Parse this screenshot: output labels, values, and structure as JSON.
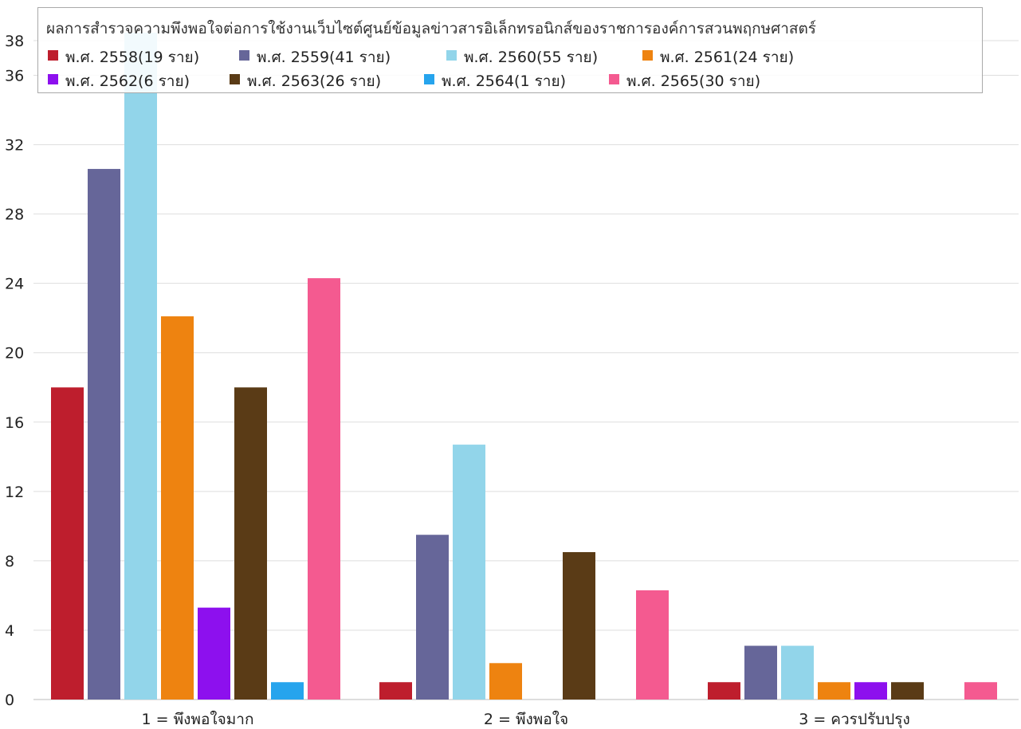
{
  "chart_data": {
    "type": "bar",
    "title": "ผลการสำรวจความพึงพอใจต่อการใช้งานเว็บไซต์ศูนย์ข้อมูลข่าวสารอิเล็กทรอนิกส์ของราชการองค์การสวนพฤกษศาสตร์",
    "xlabel": "",
    "ylabel": "",
    "categories": [
      "1 = พึงพอใจมาก",
      "2 = พึงพอใจ",
      "3 = ควรปรับปรุง"
    ],
    "ylim": [
      0,
      38
    ],
    "yticks": [
      0,
      4,
      8,
      12,
      16,
      20,
      24,
      28,
      32,
      36,
      38
    ],
    "grid": true,
    "legend_position": "top",
    "series": [
      {
        "name": "พ.ศ. 2558(19 ราย)",
        "color": "#be1e2d",
        "values": [
          18,
          1,
          1
        ]
      },
      {
        "name": "พ.ศ. 2559(41 ราย)",
        "color": "#666699",
        "values": [
          30.6,
          9.5,
          3.1
        ]
      },
      {
        "name": "พ.ศ. 2560(55 ราย)",
        "color": "#92d5ea",
        "values": [
          40,
          14.7,
          3.1
        ]
      },
      {
        "name": "พ.ศ. 2561(24 ราย)",
        "color": "#ee8310",
        "values": [
          22.1,
          2.1,
          1
        ]
      },
      {
        "name": "พ.ศ. 2562(6 ราย)",
        "color": "#8d10ee",
        "values": [
          5.3,
          0,
          1
        ]
      },
      {
        "name": "พ.ศ. 2563(26 ราย)",
        "color": "#5a3b16",
        "values": [
          18,
          8.5,
          1
        ]
      },
      {
        "name": "พ.ศ. 2564(1 ราย)",
        "color": "#26a4ed",
        "values": [
          1,
          0,
          0
        ]
      },
      {
        "name": "พ.ศ. 2565(30 ราย)",
        "color": "#f45a90",
        "values": [
          24.3,
          6.3,
          1
        ]
      }
    ]
  }
}
